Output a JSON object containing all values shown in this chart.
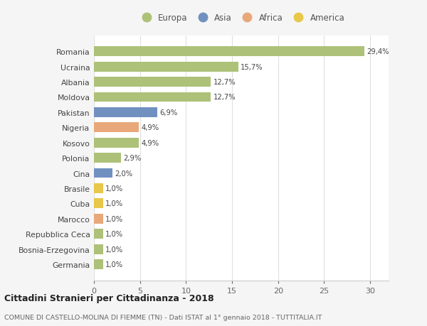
{
  "countries": [
    "Romania",
    "Ucraina",
    "Albania",
    "Moldova",
    "Pakistan",
    "Nigeria",
    "Kosovo",
    "Polonia",
    "Cina",
    "Brasile",
    "Cuba",
    "Marocco",
    "Repubblica Ceca",
    "Bosnia-Erzegovina",
    "Germania"
  ],
  "values": [
    29.4,
    15.7,
    12.7,
    12.7,
    6.9,
    4.9,
    4.9,
    2.9,
    2.0,
    1.0,
    1.0,
    1.0,
    1.0,
    1.0,
    1.0
  ],
  "labels": [
    "29,4%",
    "15,7%",
    "12,7%",
    "12,7%",
    "6,9%",
    "4,9%",
    "4,9%",
    "2,9%",
    "2,0%",
    "1,0%",
    "1,0%",
    "1,0%",
    "1,0%",
    "1,0%",
    "1,0%"
  ],
  "colors": [
    "#adc178",
    "#adc178",
    "#adc178",
    "#adc178",
    "#7090c0",
    "#e8a87a",
    "#adc178",
    "#adc178",
    "#7090c0",
    "#e8c84a",
    "#e8c84a",
    "#e8a87a",
    "#adc178",
    "#adc178",
    "#adc178"
  ],
  "legend_labels": [
    "Europa",
    "Asia",
    "Africa",
    "America"
  ],
  "legend_colors": [
    "#adc178",
    "#7090c0",
    "#e8a87a",
    "#e8c84a"
  ],
  "title_main": "Cittadini Stranieri per Cittadinanza - 2018",
  "title_sub": "COMUNE DI CASTELLO-MOLINA DI FIEMME (TN) - Dati ISTAT al 1° gennaio 2018 - TUTTITALIA.IT",
  "xlim": [
    0,
    32
  ],
  "xticks": [
    0,
    5,
    10,
    15,
    20,
    25,
    30
  ],
  "bg_color": "#f5f5f5",
  "plot_bg_color": "#ffffff",
  "grid_color": "#e0e0e0"
}
